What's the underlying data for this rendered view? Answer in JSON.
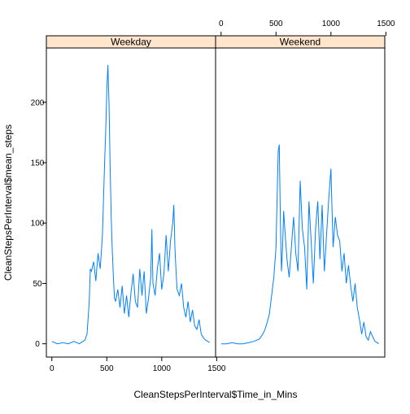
{
  "chart_data": {
    "type": "line",
    "layout": "lattice-2-panel",
    "xlabel": "CleanStepsPerInterval$Time_in_Mins",
    "ylabel": "CleanStepsPerInterval$mean_steps",
    "xlim": [
      -50,
      1490
    ],
    "ylim": [
      -11,
      245
    ],
    "x_ticks": [
      0,
      500,
      1000,
      1500
    ],
    "x_tick_labels": [
      "0",
      "500",
      "1000",
      "1500"
    ],
    "y_ticks": [
      0,
      50,
      100,
      150,
      200
    ],
    "y_tick_labels": [
      "0",
      "50",
      "100",
      "150",
      "200"
    ],
    "line_color": "#0080ff",
    "strip_color": "#ffe5cc",
    "panels": [
      {
        "strip": "Weekday",
        "x": [
          0,
          50,
          100,
          150,
          200,
          250,
          300,
          320,
          340,
          350,
          360,
          380,
          400,
          420,
          440,
          460,
          480,
          490,
          500,
          510,
          520,
          530,
          540,
          550,
          560,
          570,
          580,
          600,
          620,
          640,
          660,
          680,
          700,
          720,
          740,
          760,
          780,
          800,
          820,
          840,
          860,
          880,
          900,
          910,
          920,
          940,
          960,
          980,
          1000,
          1020,
          1040,
          1060,
          1080,
          1100,
          1110,
          1120,
          1130,
          1140,
          1160,
          1180,
          1200,
          1220,
          1240,
          1260,
          1280,
          1300,
          1320,
          1340,
          1360,
          1380,
          1400,
          1420,
          1435
        ],
        "y": [
          2,
          0,
          1,
          0,
          2,
          0,
          3,
          8,
          35,
          62,
          60,
          68,
          52,
          75,
          62,
          90,
          150,
          175,
          210,
          231,
          200,
          150,
          105,
          78,
          55,
          38,
          35,
          45,
          30,
          48,
          25,
          40,
          22,
          42,
          58,
          35,
          30,
          62,
          40,
          60,
          25,
          38,
          55,
          95,
          50,
          40,
          62,
          75,
          45,
          58,
          90,
          60,
          85,
          100,
          115,
          80,
          60,
          45,
          40,
          50,
          30,
          22,
          35,
          18,
          28,
          15,
          12,
          20,
          8,
          5,
          3,
          2,
          1
        ]
      },
      {
        "strip": "Weekend",
        "x": [
          0,
          50,
          100,
          150,
          200,
          250,
          300,
          350,
          380,
          400,
          420,
          440,
          460,
          480,
          500,
          510,
          520,
          530,
          540,
          550,
          560,
          570,
          580,
          600,
          620,
          640,
          660,
          680,
          700,
          720,
          740,
          760,
          780,
          800,
          820,
          840,
          860,
          880,
          900,
          920,
          940,
          960,
          980,
          1000,
          1010,
          1020,
          1040,
          1060,
          1080,
          1100,
          1120,
          1140,
          1160,
          1180,
          1200,
          1220,
          1240,
          1260,
          1280,
          1300,
          1320,
          1340,
          1360,
          1380,
          1400,
          1420,
          1435
        ],
        "y": [
          0,
          0,
          1,
          0,
          0,
          1,
          2,
          4,
          8,
          12,
          18,
          25,
          40,
          55,
          80,
          120,
          160,
          165,
          100,
          60,
          80,
          110,
          95,
          70,
          55,
          80,
          105,
          75,
          60,
          135,
          95,
          80,
          45,
          118,
          85,
          50,
          95,
          118,
          70,
          115,
          60,
          90,
          120,
          145,
          110,
          80,
          105,
          90,
          85,
          60,
          75,
          50,
          65,
          48,
          35,
          50,
          30,
          20,
          8,
          18,
          6,
          3,
          10,
          6,
          2,
          1,
          0
        ]
      }
    ]
  }
}
